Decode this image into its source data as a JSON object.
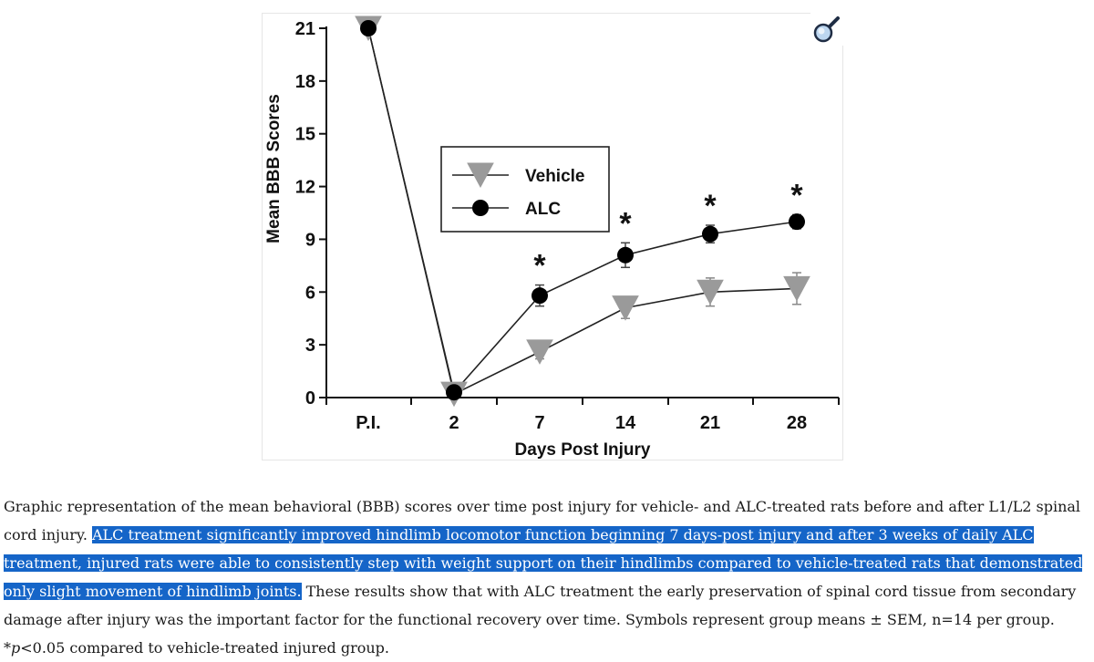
{
  "chart_data": {
    "type": "line",
    "title": "",
    "xlabel": "Days Post Injury",
    "ylabel": "Mean BBB Scores",
    "categories": [
      "P.I.",
      "2",
      "7",
      "14",
      "21",
      "28"
    ],
    "ylim": [
      0,
      21
    ],
    "yticks": [
      "0",
      "3",
      "6",
      "9",
      "12",
      "15",
      "18",
      "21"
    ],
    "series": [
      {
        "name": "Vehicle",
        "marker": "triangle-down",
        "color": "#9a9a9a",
        "values": [
          21.0,
          0.2,
          2.6,
          5.1,
          6.0,
          6.2
        ],
        "sem": [
          0.0,
          0.0,
          0.4,
          0.6,
          0.8,
          0.9
        ]
      },
      {
        "name": "ALC",
        "marker": "circle",
        "color": "#000000",
        "values": [
          21.0,
          0.3,
          5.8,
          8.1,
          9.3,
          10.0
        ],
        "sem": [
          0.0,
          0.0,
          0.6,
          0.7,
          0.5,
          0.4
        ]
      }
    ],
    "significance": {
      "symbol": "*",
      "categories": [
        "7",
        "14",
        "21",
        "28"
      ]
    },
    "legend_position": "center"
  },
  "zoom": {
    "icon": "magnifier-icon"
  },
  "caption": {
    "part1": "Graphic representation of the mean behavioral (BBB) scores over time post injury for vehicle- and ALC-treated rats before and after L1/L2 spinal cord injury. ",
    "highlight": "ALC treatment significantly improved hindlimb locomotor function beginning 7 days-post injury and after 3 weeks of daily ALC treatment, injured rats were able to consistently step with weight support on their hindlimbs compared to vehicle-treated rats that demonstrated only slight movement of hindlimb joints.",
    "part2": " These results show that with ALC treatment the early preservation of spinal cord tissue from secondary damage after injury was the important factor for the functional recovery over time. Symbols represent group means ± SEM, n=14 per group. *",
    "p_symbol": "p",
    "part3": "<0.05 compared to vehicle-treated injured group."
  }
}
